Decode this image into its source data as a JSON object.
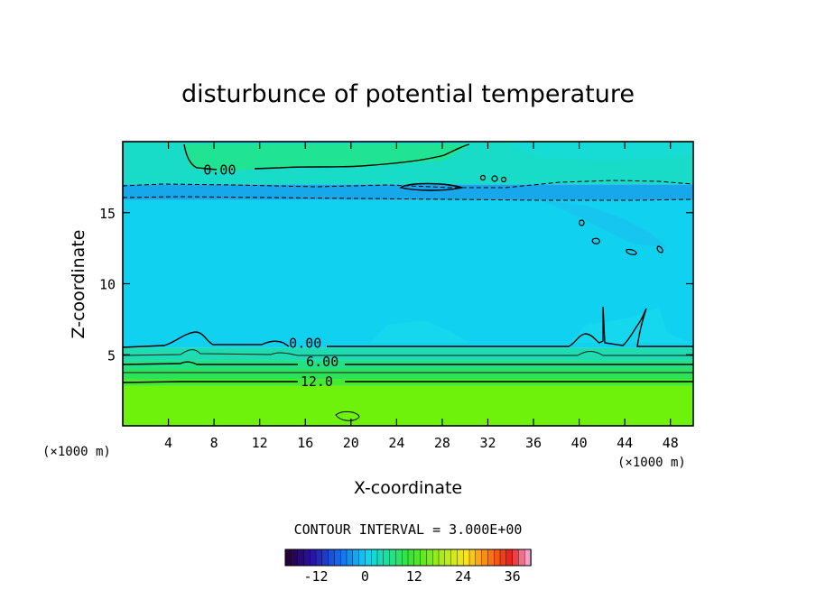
{
  "chart_data": {
    "type": "heatmap",
    "title": "disturbunce of potential temperature",
    "xlabel": "X-coordinate",
    "ylabel": "Z-coordinate",
    "x_unit": "(×1000 m)",
    "z_unit": "(×1000 m)",
    "xlim": [
      0,
      50
    ],
    "ylim": [
      0,
      20
    ],
    "x_ticks": [
      4,
      8,
      12,
      16,
      20,
      24,
      28,
      32,
      36,
      40,
      44,
      48
    ],
    "y_ticks": [
      5,
      10,
      15
    ],
    "contour_interval_text": "CONTOUR INTERVAL = 3.000E+00",
    "contour_interval": 3.0,
    "contour_labels": [
      {
        "text": "0.00",
        "x": 8.5,
        "z": 18.0
      },
      {
        "text": "0.00",
        "x": 16.0,
        "z": 5.8
      },
      {
        "text": "6.00",
        "x": 17.5,
        "z": 4.5
      },
      {
        "text": "12.0",
        "x": 17.0,
        "z": 3.1
      }
    ],
    "bands": [
      {
        "z_from": 0.0,
        "z_to": 2.8,
        "value": 12,
        "color": "#6ef20c"
      },
      {
        "z_from": 2.8,
        "z_to": 3.3,
        "value": 9,
        "color": "#46e92e"
      },
      {
        "z_from": 3.3,
        "z_to": 4.0,
        "value": 6,
        "color": "#2de259"
      },
      {
        "z_from": 4.0,
        "z_to": 4.6,
        "value": 4.5,
        "color": "#22e083"
      },
      {
        "z_from": 4.6,
        "z_to": 5.5,
        "value": 1.5,
        "color": "#1fdcb0"
      },
      {
        "z_from": 5.5,
        "z_to": 15.9,
        "value": -1.5,
        "color": "#10d2f0"
      },
      {
        "z_from": 15.9,
        "z_to": 17.0,
        "value": -4.5,
        "color": "#16a8ea"
      },
      {
        "z_from": 17.0,
        "z_to": 20.0,
        "value": 0.5,
        "color": "#19dcc8"
      }
    ],
    "colorbar": {
      "ticks": [
        -12,
        0,
        12,
        24,
        36
      ],
      "range": [
        -19.5,
        40.5
      ],
      "step": 1.5
    }
  }
}
